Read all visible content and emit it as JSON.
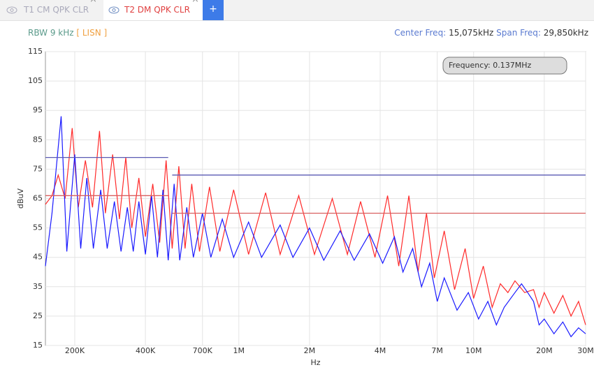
{
  "tabs": [
    {
      "label": "T1 CM QPK CLR"
    },
    {
      "label": "T2 DM QPK CLR"
    },
    {
      "label": "+"
    }
  ],
  "info": {
    "rbw": "RBW 9 kHz",
    "lisn": "[ LISN ]",
    "center_label": "Center Freq:",
    "center_value": "15,075kHz",
    "span_label": "Span Freq:",
    "span_value": "29,850kHz"
  },
  "chart_data": {
    "type": "line",
    "x_label": "Hz",
    "y_label": "dBuV",
    "annotation": "Frequency: 0.137MHz",
    "log_x": true,
    "grid": true,
    "xlim": [
      150000,
      30000000
    ],
    "ylim": [
      15,
      115
    ],
    "xticks": [
      {
        "value": 200000,
        "label": "200K"
      },
      {
        "value": 400000,
        "label": "400K"
      },
      {
        "value": 700000,
        "label": "700K"
      },
      {
        "value": 1000000,
        "label": "1M"
      },
      {
        "value": 2000000,
        "label": "2M"
      },
      {
        "value": 4000000,
        "label": "4M"
      },
      {
        "value": 7000000,
        "label": "7M"
      },
      {
        "value": 10000000,
        "label": "10M"
      },
      {
        "value": 20000000,
        "label": "20M"
      },
      {
        "value": 30000000,
        "label": "30M"
      }
    ],
    "yticks": [
      15,
      25,
      35,
      45,
      55,
      65,
      75,
      85,
      95,
      105,
      115
    ],
    "series": [
      {
        "color": "#ff2a2a",
        "x": [
          150000,
          160000,
          170000,
          182000,
          195000,
          207000,
          222000,
          238000,
          255000,
          270000,
          290000,
          310000,
          330000,
          350000,
          375000,
          400000,
          430000,
          460000,
          490000,
          520000,
          555000,
          590000,
          630000,
          680000,
          750000,
          830000,
          950000,
          1100000,
          1300000,
          1500000,
          1800000,
          2100000,
          2500000,
          2900000,
          3300000,
          3800000,
          4300000,
          4800000,
          5300000,
          5800000,
          6300000,
          6800000,
          7500000,
          8300000,
          9200000,
          10000000,
          11000000,
          12000000,
          13000000,
          14000000,
          15000000,
          16500000,
          18000000,
          19000000,
          20000000,
          22000000,
          24000000,
          26000000,
          28000000,
          30000000
        ],
        "values": [
          63,
          66,
          73,
          65,
          89,
          62,
          78,
          62,
          88,
          60,
          80,
          58,
          79,
          55,
          72,
          52,
          70,
          50,
          78,
          48,
          76,
          48,
          70,
          47,
          69,
          47,
          68,
          46,
          67,
          46,
          66,
          46,
          65,
          46,
          64,
          45,
          66,
          42,
          66,
          40,
          60,
          38,
          54,
          34,
          48,
          31,
          42,
          28,
          36,
          33,
          37,
          33,
          34,
          28,
          33,
          26,
          32,
          25,
          30,
          22
        ]
      },
      {
        "color": "#1a1aff",
        "x": [
          150000,
          160000,
          175000,
          185000,
          200000,
          212000,
          225000,
          240000,
          258000,
          275000,
          295000,
          315000,
          335000,
          355000,
          375000,
          400000,
          425000,
          450000,
          475000,
          500000,
          530000,
          560000,
          600000,
          640000,
          700000,
          760000,
          850000,
          950000,
          1100000,
          1250000,
          1500000,
          1700000,
          2000000,
          2300000,
          2700000,
          3100000,
          3600000,
          4100000,
          4600000,
          5000000,
          5500000,
          6000000,
          6500000,
          7000000,
          7500000,
          8500000,
          9500000,
          10500000,
          11500000,
          12500000,
          13500000,
          15000000,
          16000000,
          17000000,
          18000000,
          19000000,
          20000000,
          22000000,
          24000000,
          26000000,
          28000000,
          30000000
        ],
        "values": [
          42,
          60,
          93,
          47,
          80,
          48,
          72,
          48,
          68,
          48,
          64,
          47,
          62,
          47,
          64,
          46,
          66,
          45,
          68,
          44,
          70,
          44,
          62,
          45,
          60,
          45,
          58,
          45,
          57,
          45,
          56,
          45,
          55,
          44,
          54,
          44,
          53,
          43,
          52,
          40,
          48,
          35,
          43,
          30,
          38,
          27,
          33,
          24,
          30,
          22,
          28,
          33,
          36,
          33,
          30,
          22,
          24,
          19,
          23,
          18,
          21,
          19
        ]
      },
      {
        "color": "#5a5ab4",
        "x": [
          150000,
          500000,
          null,
          520000,
          30000000
        ],
        "values": [
          79,
          79,
          null,
          73,
          73
        ]
      },
      {
        "color": "#d96060",
        "x": [
          150000,
          500000,
          null,
          520000,
          30000000
        ],
        "values": [
          66,
          66,
          null,
          60,
          60
        ]
      }
    ]
  }
}
